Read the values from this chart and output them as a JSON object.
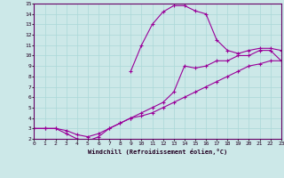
{
  "xlabel": "Windchill (Refroidissement éolien,°C)",
  "xlim": [
    0,
    23
  ],
  "ylim": [
    2,
    15
  ],
  "xticks": [
    0,
    1,
    2,
    3,
    4,
    5,
    6,
    7,
    8,
    9,
    10,
    11,
    12,
    13,
    14,
    15,
    16,
    17,
    18,
    19,
    20,
    21,
    22,
    23
  ],
  "yticks": [
    2,
    3,
    4,
    5,
    6,
    7,
    8,
    9,
    10,
    11,
    12,
    13,
    14,
    15
  ],
  "bg_color": "#cce8e8",
  "grid_color": "#aad8d8",
  "line_color": "#990099",
  "line1_x": [
    0,
    1,
    2,
    3,
    4,
    5,
    6,
    7,
    8,
    9,
    10,
    11,
    12,
    13,
    14,
    15,
    16,
    17,
    18,
    19,
    20,
    21,
    22,
    23
  ],
  "line1_y": [
    3.0,
    3.0,
    3.0,
    2.8,
    2.4,
    2.2,
    2.5,
    3.0,
    3.5,
    4.0,
    4.2,
    4.5,
    5.0,
    5.5,
    6.0,
    6.5,
    7.0,
    7.5,
    8.0,
    8.5,
    9.0,
    9.2,
    9.5,
    9.5
  ],
  "line2_x": [
    0,
    1,
    2,
    3,
    4,
    5,
    6,
    7,
    8,
    9,
    10,
    11,
    12,
    13,
    14,
    15,
    16,
    17,
    18,
    19,
    20,
    21,
    22,
    23
  ],
  "line2_y": [
    3.0,
    3.0,
    3.0,
    2.5,
    2.0,
    1.8,
    2.2,
    3.0,
    3.5,
    4.0,
    4.5,
    5.0,
    5.5,
    6.5,
    9.0,
    8.8,
    9.0,
    9.5,
    9.5,
    10.0,
    10.0,
    10.5,
    10.5,
    9.5
  ],
  "line3_x": [
    9,
    10,
    11,
    12,
    13,
    14,
    15,
    16,
    17,
    18,
    19,
    20,
    21,
    22,
    23
  ],
  "line3_y": [
    8.5,
    11.0,
    13.0,
    14.2,
    14.8,
    14.8,
    14.3,
    14.0,
    11.5,
    10.5,
    10.2,
    10.5,
    10.7,
    10.7,
    10.5
  ],
  "marker": "+",
  "markersize": 3,
  "linewidth": 0.8
}
